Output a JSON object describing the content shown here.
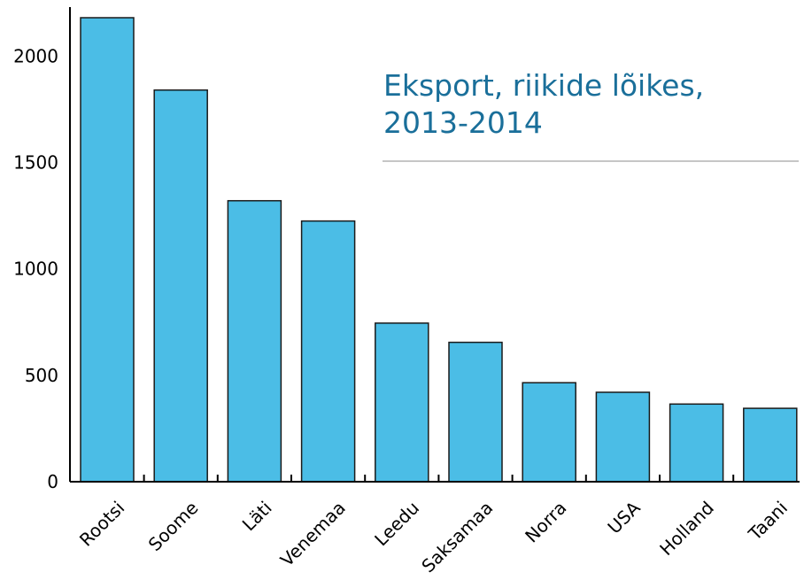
{
  "chart_data": {
    "type": "bar",
    "title_lines": [
      "Eksport, riikide lõikes,",
      "2013-2014"
    ],
    "categories": [
      "Rootsi",
      "Soome",
      "Läti",
      "Venemaa",
      "Leedu",
      "Saksamaa",
      "Norra",
      "USA",
      "Holland",
      "Taani"
    ],
    "values": [
      2180,
      1840,
      1320,
      1225,
      745,
      655,
      465,
      420,
      365,
      345
    ],
    "y_ticks": [
      0,
      500,
      1000,
      1500,
      2000
    ],
    "ylim": [
      0,
      2230
    ],
    "grid": false,
    "bar_color": "#4bbde6",
    "bar_stroke": "#1a1a1a",
    "title_color": "#1a6f9a"
  }
}
